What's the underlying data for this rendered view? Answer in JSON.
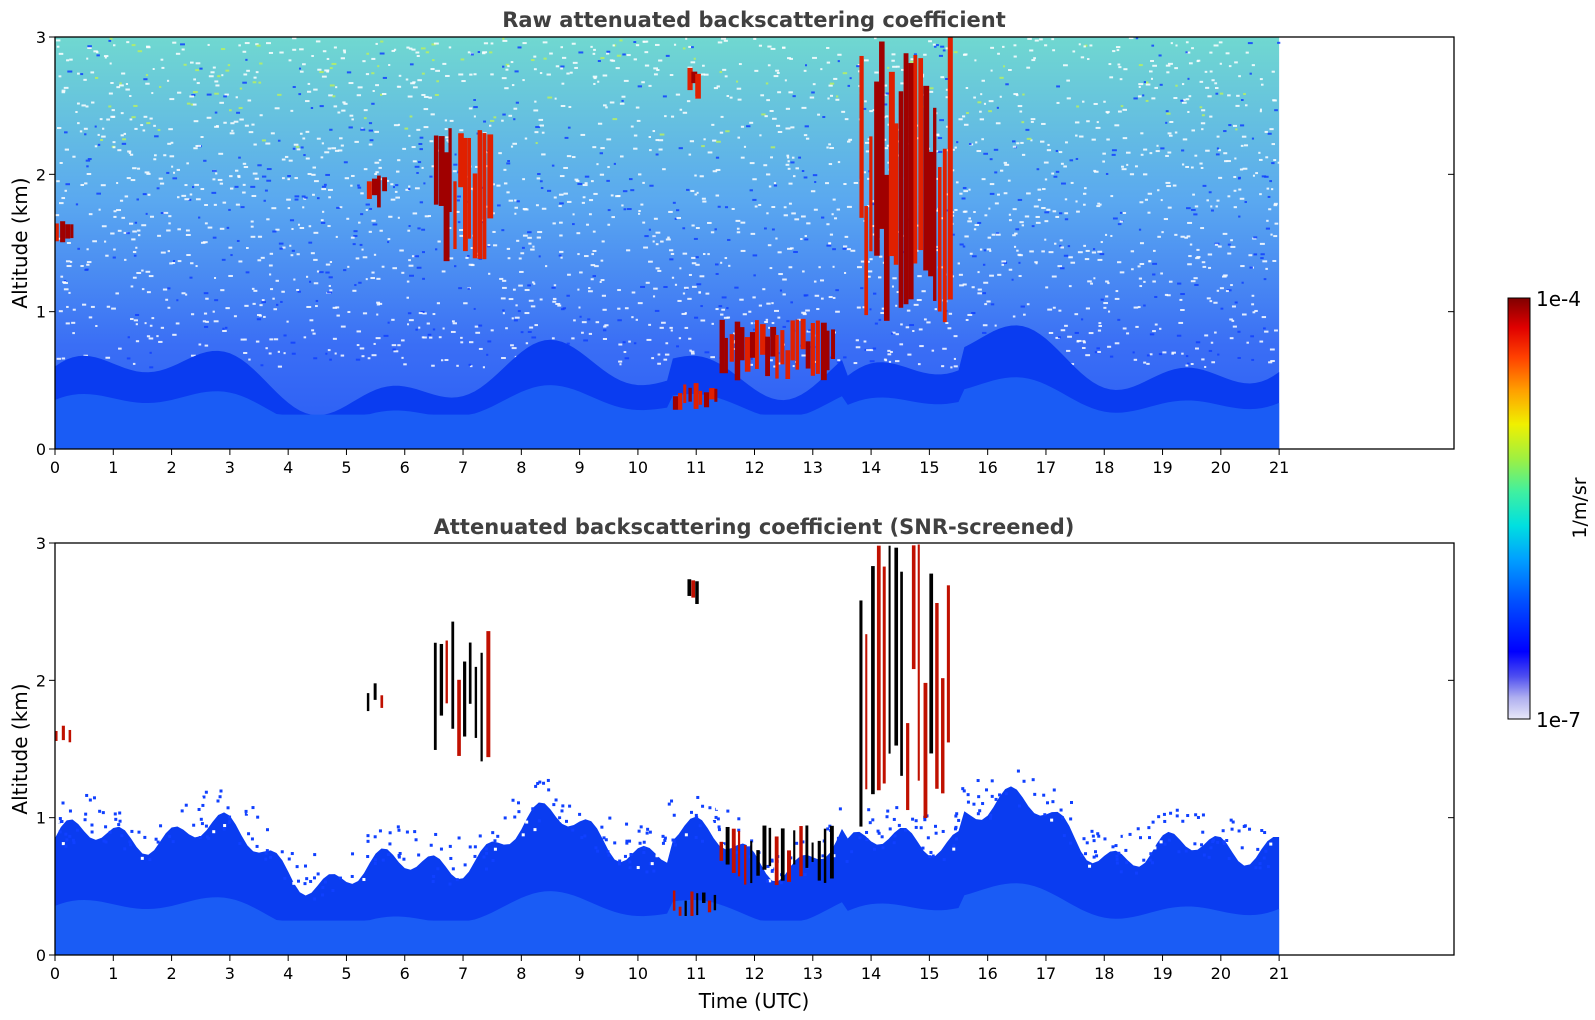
{
  "chart_data": [
    {
      "type": "heatmap",
      "title": "Raw attenuated backscattering coefficient",
      "xlabel": "",
      "ylabel": "Altitude (km)",
      "xlim": [
        0,
        24
      ],
      "ylim": [
        0,
        3
      ],
      "x_ticks": [
        0,
        1,
        2,
        3,
        4,
        5,
        6,
        7,
        8,
        9,
        10,
        11,
        12,
        13,
        14,
        15,
        16,
        17,
        18,
        19,
        20,
        21
      ],
      "y_ticks": [
        0,
        1,
        2,
        3
      ],
      "data_extent_x": [
        0,
        21
      ],
      "colormap": "jet",
      "description_of_features": {
        "noise_region_altitude_km": [
          0.6,
          3
        ],
        "boundary_layer_top_km": [
          0.3,
          0.9
        ],
        "cloud_features": [
          {
            "time": [
              0,
              0.35
            ],
            "altitude": [
              1.5,
              1.68
            ]
          },
          {
            "time": [
              5.35,
              5.7
            ],
            "altitude": [
              1.75,
              2.0
            ]
          },
          {
            "time": [
              6.5,
              7.5
            ],
            "altitude": [
              1.35,
              2.45
            ]
          },
          {
            "time": [
              10.6,
              11.4
            ],
            "altitude": [
              0.28,
              0.48
            ]
          },
          {
            "time": [
              10.85,
              11.05
            ],
            "altitude": [
              2.55,
              2.78
            ]
          },
          {
            "time": [
              11.4,
              13.4
            ],
            "altitude": [
              0.5,
              0.95
            ]
          },
          {
            "time": [
              13.8,
              15.4
            ],
            "altitude": [
              0.9,
              3.0
            ]
          }
        ]
      }
    },
    {
      "type": "heatmap",
      "title": "Attenuated backscattering coefficient (SNR-screened)",
      "xlabel": "Time (UTC)",
      "ylabel": "Altitude (km)",
      "xlim": [
        0,
        24
      ],
      "ylim": [
        0,
        3
      ],
      "x_ticks": [
        0,
        1,
        2,
        3,
        4,
        5,
        6,
        7,
        8,
        9,
        10,
        11,
        12,
        13,
        14,
        15,
        16,
        17,
        18,
        19,
        20,
        21
      ],
      "y_ticks": [
        0,
        1,
        2,
        3
      ],
      "data_extent_x": [
        0,
        21
      ],
      "colormap": "jet"
    }
  ],
  "colorbar": {
    "max_label": "1e-4",
    "min_label": "1e-7",
    "unit": "1/m/sr",
    "scale": "log",
    "colors": [
      "#e8e8f8",
      "#b0b0f0",
      "#5050f0",
      "#0000ff",
      "#0050ff",
      "#00a0ff",
      "#00e0e0",
      "#40f0a0",
      "#a0f040",
      "#f0f000",
      "#ffa000",
      "#ff4000",
      "#e00000",
      "#800000"
    ]
  }
}
